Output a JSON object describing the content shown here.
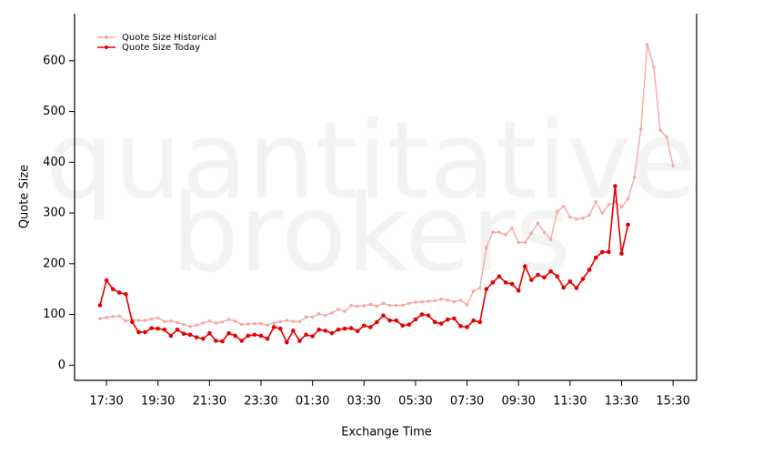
{
  "chart_data": {
    "type": "line",
    "watermark": [
      "quantitative",
      "brokers"
    ],
    "x_label": "Exchange Time",
    "y_label": "Quote Size",
    "categories": [
      null,
      "17:30",
      null,
      null,
      null,
      null,
      null,
      null,
      null,
      "19:30",
      null,
      null,
      null,
      null,
      null,
      null,
      null,
      "21:30",
      null,
      null,
      null,
      null,
      null,
      null,
      null,
      "23:30",
      null,
      null,
      null,
      null,
      null,
      null,
      null,
      "01:30",
      null,
      null,
      null,
      null,
      null,
      null,
      null,
      "03:30",
      null,
      null,
      null,
      null,
      null,
      null,
      null,
      "05:30",
      null,
      null,
      null,
      null,
      null,
      null,
      null,
      "07:30",
      null,
      null,
      null,
      null,
      null,
      null,
      null,
      "09:30",
      null,
      null,
      null,
      null,
      null,
      null,
      null,
      "11:30",
      null,
      null,
      null,
      null,
      null,
      null,
      null,
      "13:30",
      null,
      null,
      null,
      null,
      null,
      null,
      null,
      "15:30"
    ],
    "series": [
      {
        "name": "Quote Size Historical",
        "color": "#f6a9a9",
        "values": [
          92,
          94,
          96,
          97,
          87,
          90,
          88,
          88,
          91,
          93,
          86,
          87,
          84,
          80,
          76,
          79,
          83,
          87,
          83,
          85,
          90,
          87,
          80,
          81,
          82,
          82,
          79,
          83,
          86,
          88,
          86,
          86,
          95,
          95,
          101,
          98,
          103,
          110,
          106,
          118,
          116,
          117,
          120,
          116,
          122,
          118,
          118,
          118,
          122,
          124,
          125,
          126,
          127,
          130,
          128,
          125,
          128,
          119,
          146,
          152,
          232,
          262,
          262,
          257,
          270,
          242,
          242,
          260,
          280,
          262,
          248,
          303,
          313,
          292,
          288,
          290,
          296,
          322,
          300,
          316,
          322,
          312,
          328,
          370,
          465,
          632,
          588,
          463,
          450,
          393
        ]
      },
      {
        "name": "Quote Size Today",
        "color": "#e60000",
        "values": [
          118,
          167,
          150,
          143,
          140,
          85,
          65,
          65,
          73,
          72,
          70,
          58,
          70,
          62,
          60,
          55,
          52,
          63,
          48,
          47,
          63,
          58,
          48,
          58,
          60,
          58,
          52,
          75,
          72,
          45,
          68,
          48,
          60,
          57,
          70,
          68,
          63,
          70,
          72,
          73,
          67,
          78,
          75,
          85,
          98,
          88,
          88,
          78,
          80,
          90,
          100,
          98,
          85,
          82,
          90,
          92,
          77,
          75,
          88,
          85,
          150,
          163,
          175,
          163,
          160,
          147,
          195,
          168,
          178,
          173,
          185,
          175,
          153,
          165,
          152,
          170,
          188,
          212,
          223,
          223,
          353,
          220,
          277,
          null,
          null,
          null,
          null,
          null,
          null,
          null
        ]
      }
    ],
    "ylim": [
      -30,
      693
    ],
    "yticks": [
      0,
      100,
      200,
      300,
      400,
      500,
      600
    ],
    "legend": "top-left",
    "grid": false
  }
}
